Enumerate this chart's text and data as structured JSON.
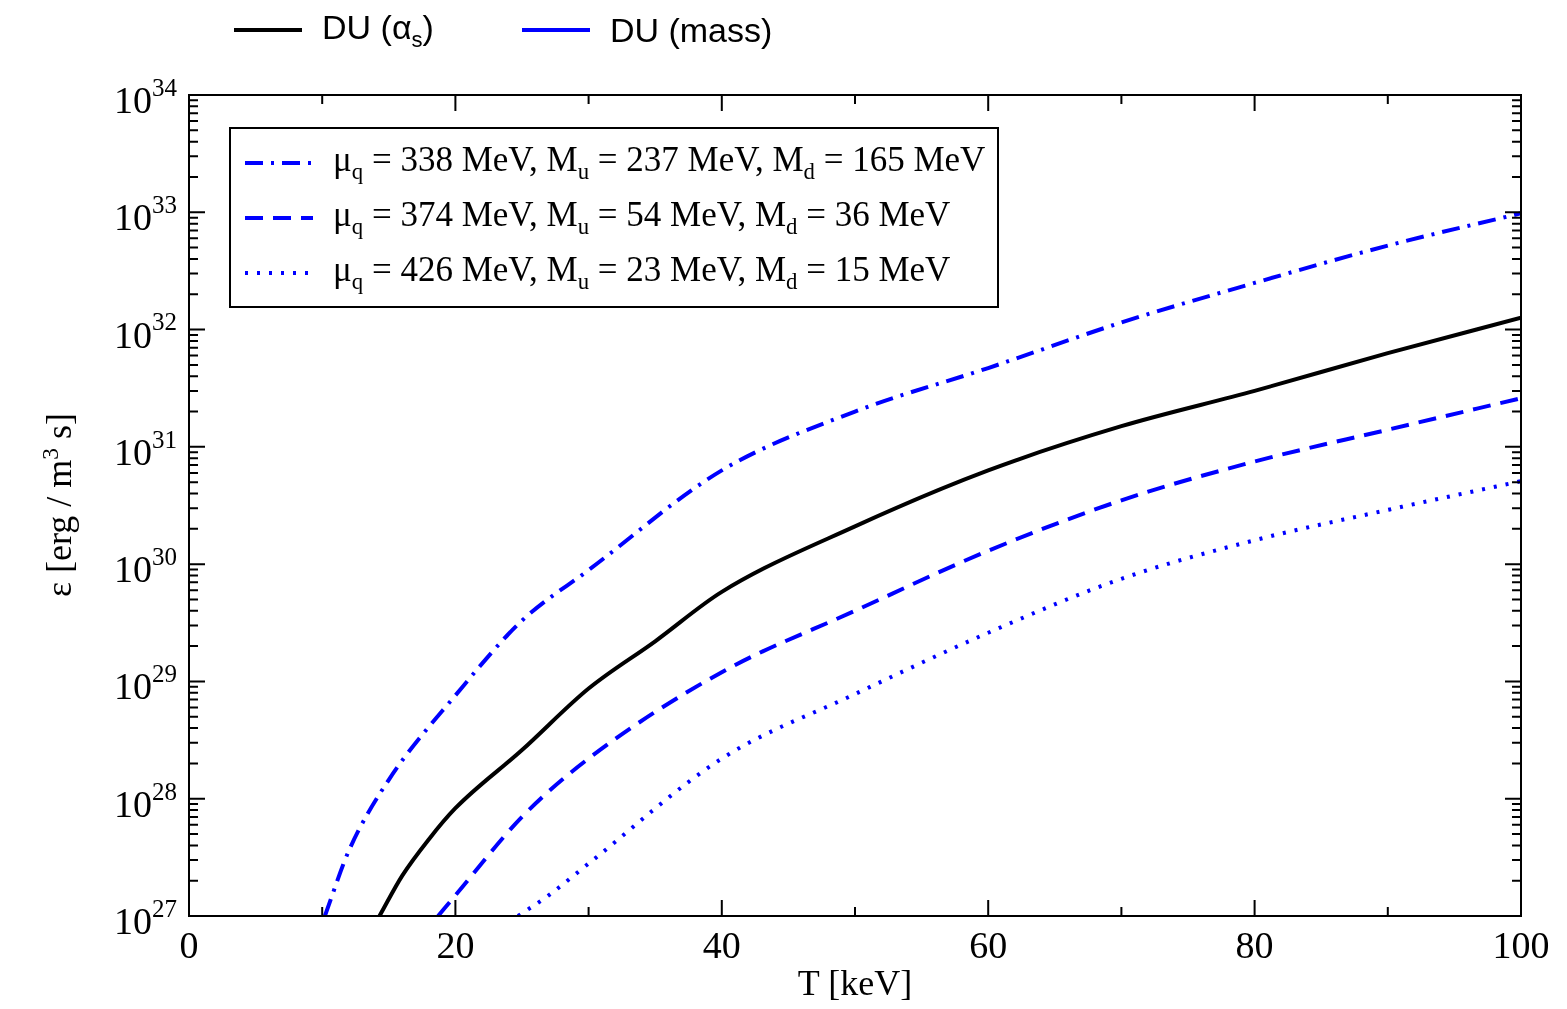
{
  "chart_data": {
    "type": "line",
    "xlabel": "T [keV]",
    "ylabel": "ε [erg / m$^{3}$ s]",
    "log": "y",
    "grid": false,
    "legend": "top left",
    "marker": "none",
    "annotations": [
      "DU (mass)"
    ],
    "xlim": [
      0,
      100
    ],
    "xticks": [
      0,
      {
        "value": 10,
        "label": null
      },
      20,
      {
        "value": 30,
        "label": null
      },
      40,
      {
        "value": 50,
        "label": null
      },
      60,
      {
        "value": 70,
        "label": null
      },
      80,
      {
        "value": 90,
        "label": null
      },
      100
    ],
    "ylim": [
      1e+27,
      1e+34
    ],
    "yticks": [
      {
        "value": 1e+27,
        "label": "10$^{27}$"
      },
      {
        "value": 2e+27,
        "label": null
      },
      {
        "value": 3e+27,
        "label": null
      },
      {
        "value": 4e+27,
        "label": null
      },
      {
        "value": 5e+27,
        "label": null
      },
      {
        "value": 6e+27,
        "label": null
      },
      {
        "value": 7e+27,
        "label": null
      },
      {
        "value": 8e+27,
        "label": null
      },
      {
        "value": 9e+27,
        "label": null
      },
      {
        "value": 1e+28,
        "label": "10$^{28}$"
      },
      {
        "value": 2e+28,
        "label": null
      },
      {
        "value": 3e+28,
        "label": null
      },
      {
        "value": 4e+28,
        "label": null
      },
      {
        "value": 5e+28,
        "label": null
      },
      {
        "value": 6e+28,
        "label": null
      },
      {
        "value": 7e+28,
        "label": null
      },
      {
        "value": 8e+28,
        "label": null
      },
      {
        "value": 9e+28,
        "label": null
      },
      {
        "value": 1e+29,
        "label": "10$^{29}$"
      },
      {
        "value": 2e+29,
        "label": null
      },
      {
        "value": 3e+29,
        "label": null
      },
      {
        "value": 4e+29,
        "label": null
      },
      {
        "value": 5e+29,
        "label": null
      },
      {
        "value": 6e+29,
        "label": null
      },
      {
        "value": 7e+29,
        "label": null
      },
      {
        "value": 8e+29,
        "label": null
      },
      {
        "value": 9e+29,
        "label": null
      },
      {
        "value": 1e+30,
        "label": "10$^{30}$"
      },
      {
        "value": 2e+30,
        "label": null
      },
      {
        "value": 3e+30,
        "label": null
      },
      {
        "value": 4e+30,
        "label": null
      },
      {
        "value": 5e+30,
        "label": null
      },
      {
        "value": 6e+30,
        "label": null
      },
      {
        "value": 7e+30,
        "label": null
      },
      {
        "value": 8e+30,
        "label": null
      },
      {
        "value": 9e+30,
        "label": null
      },
      {
        "value": 1e+31,
        "label": "10$^{31}$"
      },
      {
        "value": 2e+31,
        "label": null
      },
      {
        "value": 3e+31,
        "label": null
      },
      {
        "value": 4e+31,
        "label": null
      },
      {
        "value": 5e+31,
        "label": null
      },
      {
        "value": 6e+31,
        "label": null
      },
      {
        "value": 7e+31,
        "label": null
      },
      {
        "value": 8e+31,
        "label": null
      },
      {
        "value": 9e+31,
        "label": null
      },
      {
        "value": 1e+32,
        "label": "10$^{32}$"
      },
      {
        "value": 2e+32,
        "label": null
      },
      {
        "value": 3e+32,
        "label": null
      },
      {
        "value": 4e+32,
        "label": null
      },
      {
        "value": 5e+32,
        "label": null
      },
      {
        "value": 6e+32,
        "label": null
      },
      {
        "value": 7e+32,
        "label": null
      },
      {
        "value": 8e+32,
        "label": null
      },
      {
        "value": 9e+32,
        "label": null
      },
      {
        "value": 1e+33,
        "label": "10$^{33}$"
      },
      {
        "value": 2e+33,
        "label": null
      },
      {
        "value": 3e+33,
        "label": null
      },
      {
        "value": 4e+33,
        "label": null
      },
      {
        "value": 5e+33,
        "label": null
      },
      {
        "value": 6e+33,
        "label": null
      },
      {
        "value": 7e+33,
        "label": null
      },
      {
        "value": 8e+33,
        "label": null
      },
      {
        "value": 9e+33,
        "label": null
      },
      {
        "value": 1e+34,
        "label": "10$^{34}$"
      }
    ],
    "series": [
      {
        "name": "DU (α$_{s}$)",
        "color": "#000000",
        "line_style": "solid",
        "x": [
          14.3,
          16,
          18,
          20,
          25,
          30,
          35,
          40,
          50,
          60,
          70,
          80,
          90,
          100
        ],
        "values": [
          1e+27,
          2.2e+27,
          4.5e+27,
          8.3e+27,
          2.6e+28,
          8.7e+28,
          2.2e+29,
          5.8e+29,
          2.1e+30,
          6.3e+30,
          1.5e+31,
          3e+31,
          6.3e+31,
          1.26e+32
        ]
      },
      {
        "name": "μ$_{q}$ = 338 MeV,  M$_{u}$ = 237 MeV, M$_{d}$ = 165 MeV",
        "color": "#0000ff",
        "line_style": "dashdot",
        "x": [
          10.2,
          12,
          15,
          20,
          25,
          30,
          40,
          50,
          60,
          70,
          80,
          90,
          100
        ],
        "values": [
          1e+27,
          3.6e+27,
          1.45e+28,
          7.6e+28,
          3.3e+29,
          8.9e+29,
          6.3e+30,
          2e+31,
          4.7e+31,
          1.15e+32,
          2.5e+32,
          5.2e+32,
          9.8e+32
        ]
      },
      {
        "name": "μ$_{q}$ = 374 MeV,  M$_{u}$ = 54 MeV, M$_{d}$ = 36 MeV",
        "color": "#0000ff",
        "line_style": "dashed",
        "x": [
          18.7,
          20,
          25,
          30,
          40,
          50,
          60,
          70,
          80,
          90,
          100
        ],
        "values": [
          1e+27,
          1.5e+27,
          7e+27,
          2.2e+28,
          1.2e+29,
          4e+29,
          1.3e+30,
          3.5e+30,
          7.5e+30,
          1.4e+31,
          2.6e+31
        ]
      },
      {
        "name": "μ$_{q}$ = 426 MeV,  M$_{u}$ = 23 MeV, M$_{d}$ = 15 MeV",
        "color": "#0000ff",
        "line_style": "dotted",
        "x": [
          24.7,
          27,
          30,
          40,
          50,
          60,
          70,
          80,
          90,
          100
        ],
        "values": [
          1e+27,
          1.5e+27,
          2.8e+27,
          2.2e+28,
          7.8e+28,
          2.6e+29,
          7.5e+29,
          1.6e+30,
          2.9e+30,
          5.1e+30
        ]
      }
    ]
  }
}
